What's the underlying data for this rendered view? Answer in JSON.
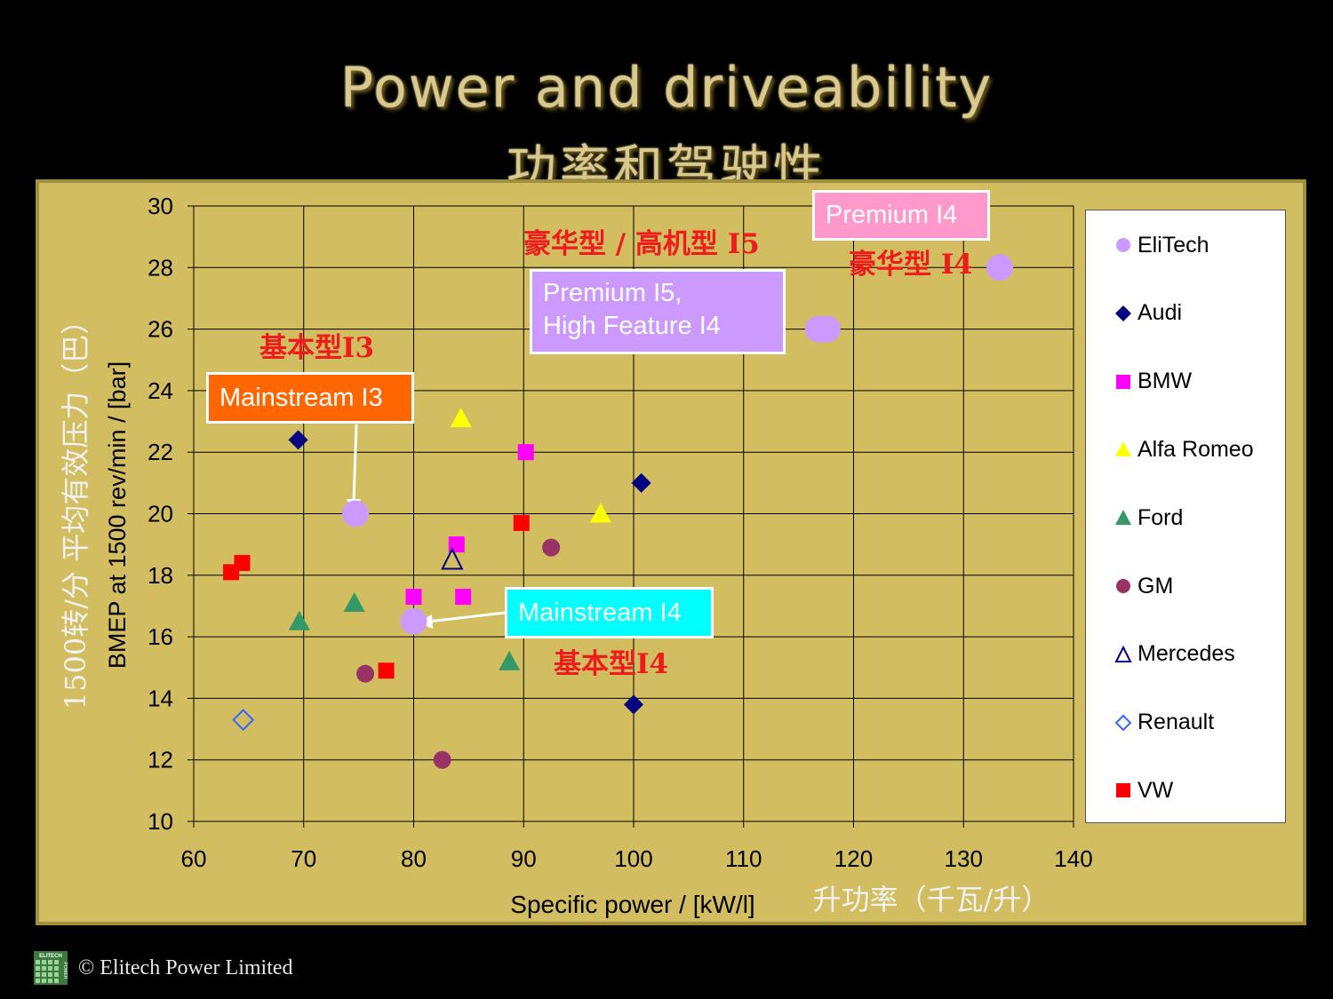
{
  "title": "Power and driveability",
  "subtitle": "功率和驾驶性",
  "footer": "© Elitech Power Limited",
  "logo_text": "ELITECH POWER",
  "colors": {
    "background": "#000000",
    "panel": "#d2bd60",
    "title": "#d9c98c",
    "annotation_red": "#ee1c1c"
  },
  "callouts": {
    "mainstream_i3": "Mainstream I3",
    "mainstream_i4": "Mainstream I4",
    "premium_i5_line1": "Premium I5,",
    "premium_i5_line2": "High Feature I4",
    "premium_i4": "Premium I4"
  },
  "red_labels": {
    "basic_i3": "基本型I3",
    "basic_i4": "基本型I4",
    "luxury_i5": "豪华型 / 高机型 I5",
    "luxury_i4": "豪华型 I4"
  },
  "chart_data": {
    "type": "scatter",
    "xlabel": "Specific power / [kW/l]",
    "xlabel_zh": "升功率（千瓦/升）",
    "ylabel": "BMEP at 1500 rev/min / [bar]",
    "ylabel_zh": "1500转/分 平均有效压力（巴）",
    "xlim": [
      60,
      140
    ],
    "ylim": [
      10,
      30
    ],
    "x_ticks": [
      60,
      70,
      80,
      90,
      100,
      110,
      120,
      130,
      140
    ],
    "y_ticks": [
      10,
      12,
      14,
      16,
      18,
      20,
      22,
      24,
      26,
      28,
      30
    ],
    "grid": true,
    "legend_position": "right",
    "series": [
      {
        "name": "EliTech",
        "marker": "circle-large",
        "color": "#cc99ff",
        "points": [
          [
            74.7,
            20.0
          ],
          [
            80.0,
            16.5
          ],
          [
            116.8,
            26.0
          ],
          [
            117.6,
            26.0
          ],
          [
            133.3,
            28.0
          ]
        ]
      },
      {
        "name": "Audi",
        "marker": "diamond",
        "color": "#000080",
        "points": [
          [
            69.5,
            22.4
          ],
          [
            100.7,
            21.0
          ],
          [
            100.0,
            13.8
          ]
        ]
      },
      {
        "name": "BMW",
        "marker": "square",
        "color": "#ff00ff",
        "points": [
          [
            90.2,
            22.0
          ],
          [
            83.9,
            19.0
          ],
          [
            80.0,
            17.3
          ],
          [
            84.5,
            17.3
          ]
        ]
      },
      {
        "name": "Alfa Romeo",
        "marker": "triangle",
        "color": "#ffff00",
        "points": [
          [
            84.3,
            23.1
          ],
          [
            97.0,
            20.0
          ]
        ]
      },
      {
        "name": "Ford",
        "marker": "triangle",
        "color": "#339966",
        "points": [
          [
            69.6,
            16.5
          ],
          [
            74.6,
            17.1
          ],
          [
            88.7,
            15.2
          ]
        ]
      },
      {
        "name": "GM",
        "marker": "circle",
        "color": "#993366",
        "points": [
          [
            92.5,
            18.9
          ],
          [
            75.6,
            14.8
          ],
          [
            82.6,
            12.0
          ]
        ]
      },
      {
        "name": "Mercedes",
        "marker": "triangle-open",
        "color": "#000080",
        "points": [
          [
            83.5,
            18.5
          ]
        ]
      },
      {
        "name": "Renault",
        "marker": "diamond-open",
        "color": "#3366ff",
        "points": [
          [
            64.5,
            13.3
          ]
        ]
      },
      {
        "name": "VW",
        "marker": "square",
        "color": "#ff0000",
        "points": [
          [
            89.8,
            19.7
          ],
          [
            64.4,
            18.4
          ],
          [
            63.4,
            18.1
          ],
          [
            77.5,
            14.9
          ]
        ]
      }
    ]
  }
}
